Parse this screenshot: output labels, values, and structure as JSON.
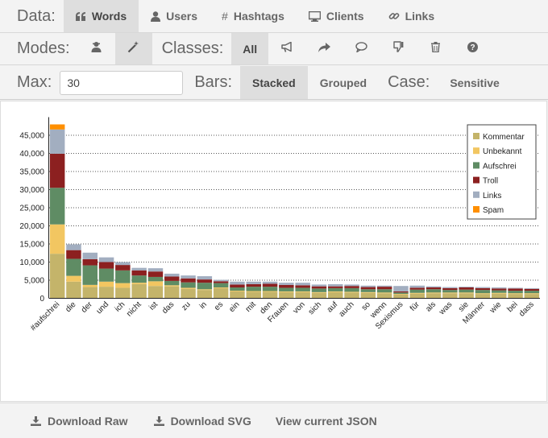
{
  "toolbar": {
    "data_label": "Data:",
    "data_tabs": [
      {
        "label": "Words",
        "icon": "quote-icon",
        "active": true
      },
      {
        "label": "Users",
        "icon": "user-icon",
        "active": false
      },
      {
        "label": "Hashtags",
        "icon": "hash-icon",
        "active": false
      },
      {
        "label": "Clients",
        "icon": "monitor-icon",
        "active": false
      },
      {
        "label": "Links",
        "icon": "link-icon",
        "active": false
      }
    ],
    "modes_label": "Modes:",
    "classes_label": "Classes:",
    "classes_all": "All",
    "max_label": "Max:",
    "max_value": "30",
    "bars_label": "Bars:",
    "bars_options": [
      "Stacked",
      "Grouped"
    ],
    "bars_selected": "Stacked",
    "case_label": "Case:",
    "case_value": "Sensitive"
  },
  "footer": {
    "download_raw": "Download Raw",
    "download_svg": "Download SVG",
    "view_json": "View current JSON"
  },
  "chart_data": {
    "type": "bar",
    "stacked": true,
    "categories": [
      "#aufschrei",
      "die",
      "der",
      "und",
      "ich",
      "nicht",
      "ist",
      "das",
      "zu",
      "in",
      "es",
      "ein",
      "mit",
      "den",
      "Frauen",
      "von",
      "sich",
      "auf",
      "auch",
      "so",
      "wenn",
      "Sexismus",
      "für",
      "als",
      "was",
      "sie",
      "Männer",
      "wie",
      "bei",
      "dass"
    ],
    "series": [
      {
        "name": "Kommentar",
        "color": "#c4b46a",
        "values": [
          12300,
          4600,
          3100,
          3200,
          2900,
          3900,
          3400,
          3300,
          2600,
          2300,
          2800,
          1900,
          1800,
          1800,
          1700,
          1700,
          1500,
          1700,
          1600,
          1500,
          1400,
          1000,
          1300,
          1400,
          1400,
          1400,
          1200,
          1300,
          1200,
          1200
        ]
      },
      {
        "name": "Unbekannt",
        "color": "#f2c661",
        "values": [
          8100,
          1600,
          600,
          1400,
          1300,
          400,
          1300,
          300,
          300,
          200,
          200,
          200,
          200,
          200,
          200,
          200,
          200,
          200,
          200,
          200,
          200,
          200,
          200,
          200,
          200,
          200,
          200,
          200,
          200,
          200
        ]
      },
      {
        "name": "Aufschrei",
        "color": "#5f8c64",
        "values": [
          10100,
          4700,
          5400,
          3600,
          3500,
          2000,
          1200,
          1200,
          1500,
          1800,
          1200,
          900,
          1200,
          1200,
          1000,
          1000,
          1000,
          900,
          1000,
          800,
          900,
          400,
          900,
          900,
          700,
          800,
          900,
          700,
          700,
          700
        ]
      },
      {
        "name": "Troll",
        "color": "#8c2020",
        "values": [
          9400,
          2400,
          1700,
          1800,
          1500,
          1400,
          1500,
          1200,
          1100,
          900,
          500,
          800,
          700,
          800,
          800,
          700,
          600,
          500,
          600,
          600,
          700,
          300,
          500,
          500,
          500,
          600,
          500,
          500,
          600,
          500
        ]
      },
      {
        "name": "Links",
        "color": "#a2aec0",
        "values": [
          6700,
          1600,
          1800,
          1300,
          800,
          700,
          900,
          800,
          800,
          900,
          400,
          800,
          700,
          600,
          600,
          700,
          500,
          600,
          400,
          400,
          300,
          1500,
          600,
          300,
          300,
          200,
          300,
          300,
          200,
          200
        ]
      },
      {
        "name": "Spam",
        "color": "#ff8f00",
        "values": [
          1400,
          0,
          0,
          0,
          0,
          0,
          0,
          0,
          0,
          0,
          0,
          0,
          0,
          0,
          0,
          0,
          0,
          0,
          0,
          0,
          0,
          0,
          0,
          0,
          0,
          0,
          0,
          0,
          0,
          0
        ]
      }
    ],
    "y_ticks": [
      "0",
      "5,000",
      "10,000",
      "15,000",
      "20,000",
      "25,000",
      "30,000",
      "35,000",
      "40,000",
      "45,000"
    ],
    "ylim": [
      0,
      50000
    ],
    "grid": true,
    "legend_position": "top-right"
  }
}
